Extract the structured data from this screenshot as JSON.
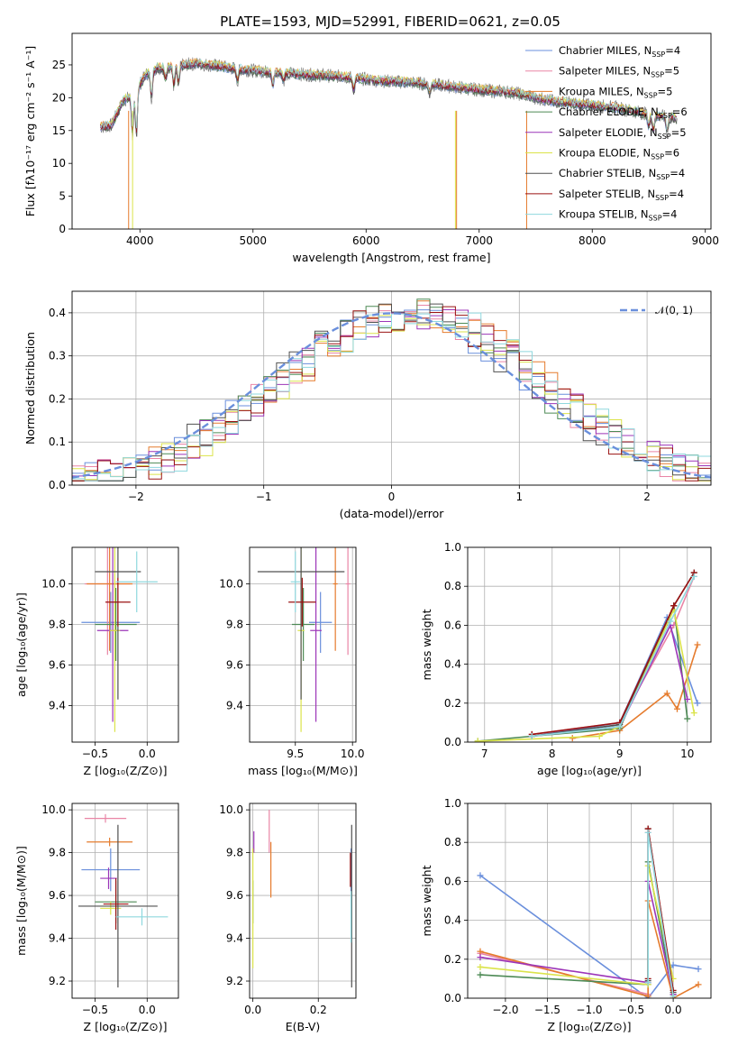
{
  "figure": {
    "title": "PLATE=1593, MJD=52991, FIBERID=0621, z=0.05"
  },
  "colors": {
    "Chabrier MILES": "#6a8fdc",
    "Salpeter MILES": "#e985a6",
    "Kroupa MILES": "#e57b2d",
    "Chabrier ELODIE": "#4d8a55",
    "Salpeter ELODIE": "#9c35b8",
    "Kroupa ELODIE": "#dbe34a",
    "Chabrier STELIB": "#505050",
    "Salpeter STELIB": "#9a1212",
    "Kroupa STELIB": "#8fd8de"
  },
  "chart_data": [
    {
      "type": "line",
      "id": "spectrum",
      "xlabel": "wavelength [Angstrom, rest frame]",
      "ylabel": "Flux [fλ10⁻¹⁷ erg cm⁻² s⁻¹ A⁻¹]",
      "xlim": [
        3400,
        9050
      ],
      "ylim": [
        0,
        29.8
      ],
      "xticks": [
        4000,
        5000,
        6000,
        7000,
        8000,
        9000
      ],
      "yticks": [
        0,
        5,
        10,
        15,
        20,
        25
      ],
      "legend_position": "upper-right",
      "legend": [
        "Chabrier MILES, N_SSP=4",
        "Salpeter MILES, N_SSP=5",
        "Kroupa MILES, N_SSP=5",
        "Chabrier ELODIE, N_SSP=6",
        "Salpeter ELODIE, N_SSP=5",
        "Kroupa ELODIE, N_SSP=6",
        "Chabrier STELIB, N_SSP=4",
        "Salpeter STELIB, N_SSP=4",
        "Kroupa STELIB, N_SSP=4"
      ],
      "continuum": {
        "x": [
          3650,
          3750,
          3850,
          3950,
          4050,
          4150,
          4300,
          4500,
          4700,
          4900,
          5200,
          5500,
          5800,
          6100,
          6400,
          6700,
          7000,
          7300,
          7600,
          7900,
          8200,
          8500,
          8750
        ],
        "y": [
          15.5,
          15.8,
          19.5,
          20.5,
          23.5,
          24.5,
          24.8,
          25.2,
          24.8,
          24.3,
          23.8,
          23.5,
          23.2,
          22.6,
          22.3,
          21.8,
          21.2,
          20.8,
          19.6,
          19.0,
          18.5,
          17.5,
          16.8
        ]
      }
    },
    {
      "type": "bar",
      "id": "residuals",
      "xlabel": "(data-model)/error",
      "ylabel": "Normed distribution",
      "xlim": [
        -2.5,
        2.5
      ],
      "ylim": [
        0,
        0.45
      ],
      "xticks": [
        -2,
        -1,
        0,
        1,
        2
      ],
      "yticks": [
        0.0,
        0.1,
        0.2,
        0.3,
        0.4
      ],
      "bin_width": 0.1,
      "legend": [
        "𝒩(0, 1)"
      ],
      "legend_position": "upper-right",
      "reference_curve": "normal(0,1)"
    },
    {
      "type": "scatter",
      "id": "age_vs_Z",
      "xlabel": "Z [log₁₀(Z/Z⊙)]",
      "ylabel": "age  [log₁₀(age/yr)]",
      "xlim": [
        -0.72,
        0.3
      ],
      "ylim": [
        9.22,
        10.18
      ],
      "xticks": [
        -0.5,
        0.0
      ],
      "yticks": [
        9.4,
        9.6,
        9.8,
        10.0
      ],
      "points": [
        {
          "name": "Chabrier MILES",
          "x": -0.35,
          "y": 9.81,
          "xerr": 0.28,
          "yerr": 0.15
        },
        {
          "name": "Salpeter MILES",
          "x": -0.38,
          "y": 10.0,
          "xerr": 0.22,
          "yerr": 0.35
        },
        {
          "name": "Kroupa MILES",
          "x": -0.36,
          "y": 10.0,
          "xerr": 0.22,
          "yerr": 0.33
        },
        {
          "name": "Chabrier ELODIE",
          "x": -0.3,
          "y": 9.8,
          "xerr": 0.2,
          "yerr": 0.18
        },
        {
          "name": "Salpeter ELODIE",
          "x": -0.33,
          "y": 9.77,
          "xerr": 0.15,
          "yerr": 0.45
        },
        {
          "name": "Kroupa ELODIE",
          "x": -0.31,
          "y": 9.77,
          "xerr": 0.05,
          "yerr": 0.5
        },
        {
          "name": "Chabrier STELIB",
          "x": -0.28,
          "y": 10.06,
          "xerr": 0.22,
          "yerr": 0.63
        },
        {
          "name": "Salpeter STELIB",
          "x": -0.28,
          "y": 9.91,
          "xerr": 0.12,
          "yerr": 0.12
        },
        {
          "name": "Kroupa STELIB",
          "x": -0.1,
          "y": 10.01,
          "xerr": 0.2,
          "yerr": 0.15
        }
      ]
    },
    {
      "type": "scatter",
      "id": "age_vs_mass",
      "xlabel": "mass [log₁₀(M/M⊙)]",
      "ylabel": "",
      "xlim": [
        9.1,
        10.03
      ],
      "ylim": [
        9.22,
        10.18
      ],
      "xticks": [
        9.5,
        10.0
      ],
      "yticks": [
        9.4,
        9.6,
        9.8,
        10.0
      ],
      "points": [
        {
          "name": "Chabrier MILES",
          "x": 9.72,
          "y": 9.81,
          "xerr": 0.1,
          "yerr": 0.15
        },
        {
          "name": "Salpeter MILES",
          "x": 9.96,
          "y": 10.0,
          "xerr": 0.02,
          "yerr": 0.35
        },
        {
          "name": "Kroupa MILES",
          "x": 9.85,
          "y": 10.0,
          "xerr": 0.02,
          "yerr": 0.33
        },
        {
          "name": "Chabrier ELODIE",
          "x": 9.57,
          "y": 9.8,
          "xerr": 0.1,
          "yerr": 0.18
        },
        {
          "name": "Salpeter ELODIE",
          "x": 9.68,
          "y": 9.77,
          "xerr": 0.05,
          "yerr": 0.45
        },
        {
          "name": "Kroupa ELODIE",
          "x": 9.55,
          "y": 9.77,
          "xerr": 0.03,
          "yerr": 0.5
        },
        {
          "name": "Chabrier STELIB",
          "x": 9.55,
          "y": 10.06,
          "xerr": 0.38,
          "yerr": 0.63
        },
        {
          "name": "Salpeter STELIB",
          "x": 9.56,
          "y": 9.91,
          "xerr": 0.12,
          "yerr": 0.12
        },
        {
          "name": "Kroupa STELIB",
          "x": 9.5,
          "y": 10.01,
          "xerr": 0.04,
          "yerr": 0.15
        }
      ]
    },
    {
      "type": "line",
      "id": "massweight_vs_age",
      "xlabel": "age  [log₁₀(age/yr)]",
      "ylabel": "mass weight",
      "xlim": [
        6.75,
        10.35
      ],
      "ylim": [
        0,
        1.0
      ],
      "xticks": [
        7,
        8,
        9,
        10
      ],
      "yticks": [
        0.0,
        0.2,
        0.4,
        0.6,
        0.8,
        1.0
      ],
      "series": [
        {
          "name": "Chabrier MILES",
          "x": [
            7.7,
            9.0,
            9.7,
            10.15
          ],
          "y": [
            0.03,
            0.1,
            0.64,
            0.2
          ]
        },
        {
          "name": "Salpeter MILES",
          "x": [
            7.7,
            9.0,
            9.8,
            10.1
          ],
          "y": [
            0.04,
            0.1,
            0.6,
            0.85
          ]
        },
        {
          "name": "Kroupa MILES",
          "x": [
            8.3,
            9.0,
            9.7,
            9.85,
            10.15
          ],
          "y": [
            0.02,
            0.06,
            0.25,
            0.17,
            0.5
          ]
        },
        {
          "name": "Chabrier ELODIE",
          "x": [
            6.9,
            7.7,
            9.0,
            9.8,
            10.0
          ],
          "y": [
            0.005,
            0.03,
            0.07,
            0.7,
            0.12
          ]
        },
        {
          "name": "Salpeter ELODIE",
          "x": [
            7.7,
            9.0,
            9.75,
            10.0
          ],
          "y": [
            0.03,
            0.08,
            0.6,
            0.22
          ]
        },
        {
          "name": "Kroupa ELODIE",
          "x": [
            6.9,
            8.7,
            9.0,
            9.8,
            10.1
          ],
          "y": [
            0.005,
            0.03,
            0.08,
            0.68,
            0.15
          ]
        },
        {
          "name": "Chabrier STELIB",
          "x": [
            7.7,
            9.0,
            9.8,
            10.1
          ],
          "y": [
            0.03,
            0.09,
            0.7,
            0.87
          ]
        },
        {
          "name": "Salpeter STELIB",
          "x": [
            7.7,
            9.0,
            9.8,
            10.1
          ],
          "y": [
            0.04,
            0.1,
            0.7,
            0.87
          ]
        },
        {
          "name": "Kroupa STELIB",
          "x": [
            7.7,
            9.0,
            9.75,
            10.1
          ],
          "y": [
            0.03,
            0.08,
            0.62,
            0.85
          ]
        }
      ]
    },
    {
      "type": "scatter",
      "id": "mass_vs_Z",
      "xlabel": "Z [log₁₀(Z/Z⊙)]",
      "ylabel": "mass [log₁₀(M/M⊙)]",
      "xlim": [
        -0.72,
        0.3
      ],
      "ylim": [
        9.12,
        10.03
      ],
      "xticks": [
        -0.5,
        0.0
      ],
      "yticks": [
        9.2,
        9.4,
        9.6,
        9.8,
        10.0
      ],
      "points": [
        {
          "name": "Chabrier MILES",
          "x": -0.35,
          "y": 9.72,
          "xerr": 0.28,
          "yerr": 0.1
        },
        {
          "name": "Salpeter MILES",
          "x": -0.4,
          "y": 9.96,
          "xerr": 0.2,
          "yerr": 0.02
        },
        {
          "name": "Kroupa MILES",
          "x": -0.36,
          "y": 9.85,
          "xerr": 0.22,
          "yerr": 0.02
        },
        {
          "name": "Chabrier ELODIE",
          "x": -0.3,
          "y": 9.57,
          "xerr": 0.2,
          "yerr": 0.1
        },
        {
          "name": "Salpeter ELODIE",
          "x": -0.37,
          "y": 9.68,
          "xerr": 0.08,
          "yerr": 0.05
        },
        {
          "name": "Kroupa ELODIE",
          "x": -0.35,
          "y": 9.54,
          "xerr": 0.1,
          "yerr": 0.03
        },
        {
          "name": "Chabrier STELIB",
          "x": -0.28,
          "y": 9.55,
          "xerr": 0.38,
          "yerr": 0.38
        },
        {
          "name": "Salpeter STELIB",
          "x": -0.3,
          "y": 9.56,
          "xerr": 0.12,
          "yerr": 0.12
        },
        {
          "name": "Kroupa STELIB",
          "x": -0.05,
          "y": 9.5,
          "xerr": 0.25,
          "yerr": 0.04
        }
      ]
    },
    {
      "type": "scatter",
      "id": "mass_vs_EBV",
      "xlabel": "E(B-V)",
      "ylabel": "",
      "xlim": [
        -0.01,
        0.315
      ],
      "ylim": [
        9.12,
        10.03
      ],
      "xticks": [
        0.0,
        0.2
      ],
      "yticks": [
        9.2,
        9.4,
        9.6,
        9.8,
        10.0
      ],
      "points": [
        {
          "name": "Chabrier MILES",
          "x": 0.3,
          "y": 9.72,
          "xerr": 0,
          "yerr": 0.1
        },
        {
          "name": "Salpeter MILES",
          "x": 0.05,
          "y": 9.9,
          "xerr": 0,
          "yerr": 0.1
        },
        {
          "name": "Kroupa MILES",
          "x": 0.055,
          "y": 9.72,
          "xerr": 0,
          "yerr": 0.13
        },
        {
          "name": "Chabrier ELODIE",
          "x": 0.0,
          "y": 9.57,
          "xerr": 0,
          "yerr": 0.1
        },
        {
          "name": "Salpeter ELODIE",
          "x": 0.003,
          "y": 9.85,
          "xerr": 0,
          "yerr": 0.05
        },
        {
          "name": "Kroupa ELODIE",
          "x": 0.0,
          "y": 9.54,
          "xerr": 0,
          "yerr": 0.28
        },
        {
          "name": "Chabrier STELIB",
          "x": 0.302,
          "y": 9.55,
          "xerr": 0,
          "yerr": 0.38
        },
        {
          "name": "Salpeter STELIB",
          "x": 0.298,
          "y": 9.72,
          "xerr": 0,
          "yerr": 0.08
        },
        {
          "name": "Kroupa STELIB",
          "x": 0.3,
          "y": 9.5,
          "xerr": 0,
          "yerr": 0.12
        }
      ]
    },
    {
      "type": "line",
      "id": "massweight_vs_Z",
      "xlabel": "Z [log₁₀(Z/Z⊙)]",
      "ylabel": "mass weight",
      "xlim": [
        -2.45,
        0.45
      ],
      "ylim": [
        0,
        1.0
      ],
      "xticks": [
        -2.0,
        -1.5,
        -1.0,
        -0.5,
        0.0
      ],
      "yticks": [
        0.0,
        0.2,
        0.4,
        0.6,
        0.8,
        1.0
      ],
      "series": [
        {
          "name": "Chabrier MILES",
          "x": [
            -2.3,
            -0.3,
            0.0,
            0.3
          ],
          "y": [
            0.63,
            0.0,
            0.17,
            0.15
          ]
        },
        {
          "name": "Salpeter MILES",
          "x": [
            -2.3,
            -0.3,
            -0.3,
            0.0
          ],
          "y": [
            0.23,
            0.02,
            0.85,
            0.02
          ]
        },
        {
          "name": "Kroupa MILES",
          "x": [
            -2.3,
            -0.3,
            -0.3,
            0.0,
            0.3
          ],
          "y": [
            0.24,
            0.01,
            0.5,
            0.0,
            0.07
          ]
        },
        {
          "name": "Chabrier ELODIE",
          "x": [
            -2.3,
            -0.3,
            -0.3,
            0.0
          ],
          "y": [
            0.12,
            0.07,
            0.7,
            0.02
          ]
        },
        {
          "name": "Salpeter ELODIE",
          "x": [
            -2.3,
            -0.3,
            -0.3,
            0.0
          ],
          "y": [
            0.21,
            0.08,
            0.6,
            0.02
          ]
        },
        {
          "name": "Kroupa ELODIE",
          "x": [
            -2.3,
            -0.3,
            -0.3,
            0.0
          ],
          "y": [
            0.16,
            0.07,
            0.68,
            0.1
          ]
        },
        {
          "name": "Chabrier STELIB",
          "x": [
            -0.3,
            -0.3,
            0.0
          ],
          "y": [
            0.09,
            0.87,
            0.03
          ]
        },
        {
          "name": "Salpeter STELIB",
          "x": [
            -0.3,
            -0.3,
            0.0
          ],
          "y": [
            0.1,
            0.87,
            0.04
          ]
        },
        {
          "name": "Kroupa STELIB",
          "x": [
            -0.3,
            -0.3,
            0.0
          ],
          "y": [
            0.08,
            0.85,
            0.01
          ]
        }
      ]
    }
  ]
}
